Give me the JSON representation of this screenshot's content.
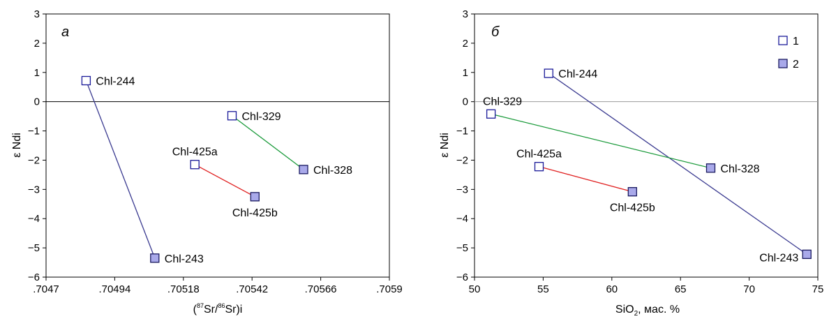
{
  "chart_data": [
    {
      "type": "scatter",
      "panel_label": "а",
      "xlabel": "(87Sr/86Sr)i",
      "xlabel_parts": {
        "open": "(",
        "sup1": "87",
        "mid": "Sr/",
        "sup2": "86",
        "close": "Sr)i"
      },
      "ylabel": "ε Ndi",
      "xlim": [
        0.7047,
        0.7059
      ],
      "ylim": [
        -6,
        3
      ],
      "xticks": [
        0.7047,
        0.70494,
        0.70518,
        0.70542,
        0.70566,
        0.7059
      ],
      "xtick_labels": [
        ".7047",
        ".70494",
        ".70518",
        ".70542",
        ".70566",
        ".7059"
      ],
      "yticks": [
        -6,
        -5,
        -4,
        -3,
        -2,
        -1,
        0,
        1,
        2,
        3
      ],
      "ytick_labels": [
        "−6",
        "−5",
        "−4",
        "−3",
        "−2",
        "−1",
        "0",
        "1",
        "2",
        "3"
      ],
      "zero_line": true,
      "grid": false,
      "points": [
        {
          "label": "Chl-244",
          "x": 0.70484,
          "y": 0.72,
          "group": 1,
          "label_pos": "right"
        },
        {
          "label": "Chl-243",
          "x": 0.70508,
          "y": -5.35,
          "group": 2,
          "label_pos": "right"
        },
        {
          "label": "Chl-425a",
          "x": 0.70522,
          "y": -2.15,
          "group": 1,
          "label_pos": "above"
        },
        {
          "label": "Chl-425b",
          "x": 0.70543,
          "y": -3.25,
          "group": 2,
          "label_pos": "below"
        },
        {
          "label": "Chl-329",
          "x": 0.70535,
          "y": -0.48,
          "group": 1,
          "label_pos": "right"
        },
        {
          "label": "Chl-328",
          "x": 0.7056,
          "y": -2.32,
          "group": 2,
          "label_pos": "right"
        }
      ],
      "segments": [
        {
          "from": "Chl-244",
          "to": "Chl-243",
          "color": "#3a3a90"
        },
        {
          "from": "Chl-425a",
          "to": "Chl-425b",
          "color": "#e02020"
        },
        {
          "from": "Chl-329",
          "to": "Chl-328",
          "color": "#1a9a3a"
        }
      ]
    },
    {
      "type": "scatter",
      "panel_label": "б",
      "xlabel": "SiO2, мас. %",
      "xlabel_parts": {
        "pre": "SiO",
        "sub": "2",
        "post": ", мас. %"
      },
      "ylabel": "ε Ndi",
      "xlim": [
        50,
        75
      ],
      "ylim": [
        -6,
        3
      ],
      "xticks": [
        50,
        55,
        60,
        65,
        70,
        75
      ],
      "xtick_labels": [
        "50",
        "55",
        "60",
        "65",
        "70",
        "75"
      ],
      "yticks": [
        -6,
        -5,
        -4,
        -3,
        -2,
        -1,
        0,
        1,
        2,
        3
      ],
      "ytick_labels": [
        "−6",
        "−5",
        "−4",
        "−3",
        "−2",
        "−1",
        "0",
        "1",
        "2",
        "3"
      ],
      "zero_line": true,
      "grid": false,
      "legend": {
        "position": "top-right",
        "entries": [
          {
            "symbol": "open-square",
            "label": "1"
          },
          {
            "symbol": "filled-square",
            "label": "2"
          }
        ]
      },
      "points": [
        {
          "label": "Chl-244",
          "x": 55.4,
          "y": 0.97,
          "group": 1,
          "label_pos": "right"
        },
        {
          "label": "Chl-243",
          "x": 74.2,
          "y": -5.22,
          "group": 2,
          "label_pos": "left"
        },
        {
          "label": "Chl-329",
          "x": 51.2,
          "y": -0.42,
          "group": 1,
          "label_pos": "above"
        },
        {
          "label": "Chl-328",
          "x": 67.2,
          "y": -2.27,
          "group": 2,
          "label_pos": "right"
        },
        {
          "label": "Chl-425a",
          "x": 54.7,
          "y": -2.22,
          "group": 1,
          "label_pos": "above"
        },
        {
          "label": "Chl-425b",
          "x": 61.5,
          "y": -3.08,
          "group": 2,
          "label_pos": "below"
        }
      ],
      "segments": [
        {
          "from": "Chl-244",
          "to": "Chl-243",
          "color": "#3a3a90"
        },
        {
          "from": "Chl-329",
          "to": "Chl-328",
          "color": "#1a9a3a"
        },
        {
          "from": "Chl-425a",
          "to": "Chl-425b",
          "color": "#e02020"
        }
      ]
    }
  ],
  "colors": {
    "open_marker_stroke": "#1a1a99",
    "filled_marker_fill": "#a9a9ea",
    "filled_marker_stroke": "#1a1a60",
    "zero_line_a": "#000000",
    "zero_line_b": "#999999"
  }
}
